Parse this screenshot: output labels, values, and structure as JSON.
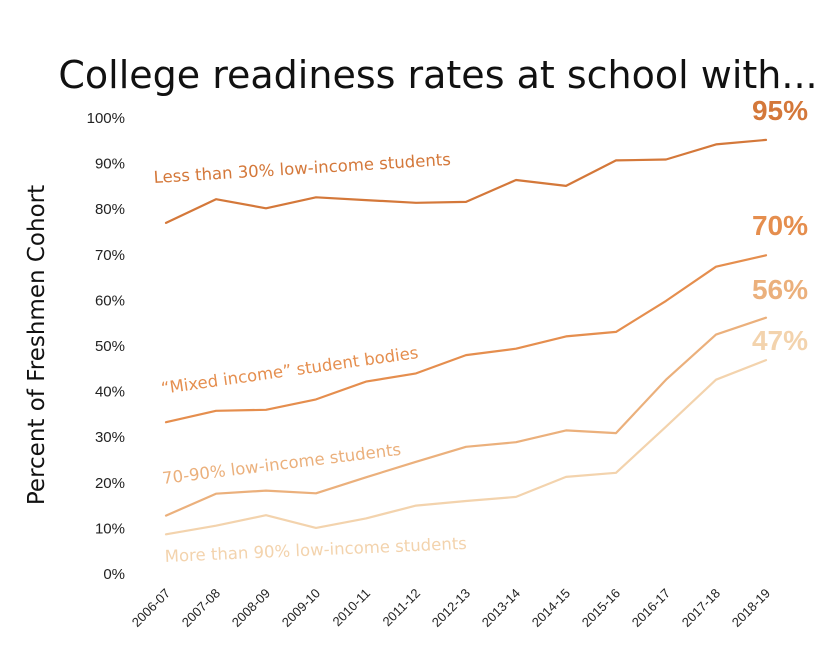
{
  "chart_data": {
    "type": "line",
    "title": "College readiness rates at school with...",
    "ylabel": "Percent of Freshmen Cohort",
    "xlabel": "",
    "ylim": [
      0,
      100
    ],
    "grid": false,
    "yticks": [
      "0%",
      "10%",
      "20%",
      "30%",
      "40%",
      "50%",
      "60%",
      "70%",
      "80%",
      "90%",
      "100%"
    ],
    "categories": [
      "2006-07",
      "2007-08",
      "2008-09",
      "2009-10",
      "2010-11",
      "2011-12",
      "2012-13",
      "2013-14",
      "2014-15",
      "2015-16",
      "2016-17",
      "2017-18",
      "2018-19"
    ],
    "series": [
      {
        "name": "Less than 30% low-income students",
        "color": "#d4783a",
        "end_label": "95%",
        "values": [
          77,
          82.2,
          80.2,
          82.6,
          82,
          81.4,
          81.6,
          86.4,
          85.1,
          90.7,
          90.9,
          94.2,
          95.2
        ]
      },
      {
        "name": "“Mixed income” student bodies",
        "color": "#e58e4e",
        "end_label": "70%",
        "values": [
          33.3,
          35.8,
          36,
          38.3,
          42.2,
          44,
          48,
          49.4,
          52.1,
          53.1,
          59.9,
          67.4,
          69.9
        ]
      },
      {
        "name": "70-90% low-income students",
        "color": "#ebb07c",
        "end_label": "56%",
        "values": [
          12.8,
          17.6,
          18.3,
          17.7,
          21.2,
          24.6,
          27.9,
          28.9,
          31.5,
          30.9,
          42.6,
          52.5,
          56.2
        ]
      },
      {
        "name": "More than 90% low-income students",
        "color": "#f3d3ad",
        "end_label": "47%",
        "values": [
          8.7,
          10.6,
          12.9,
          10.1,
          12.2,
          15,
          16,
          16.9,
          21.3,
          22.2,
          32.3,
          42.6,
          46.9
        ]
      }
    ]
  }
}
